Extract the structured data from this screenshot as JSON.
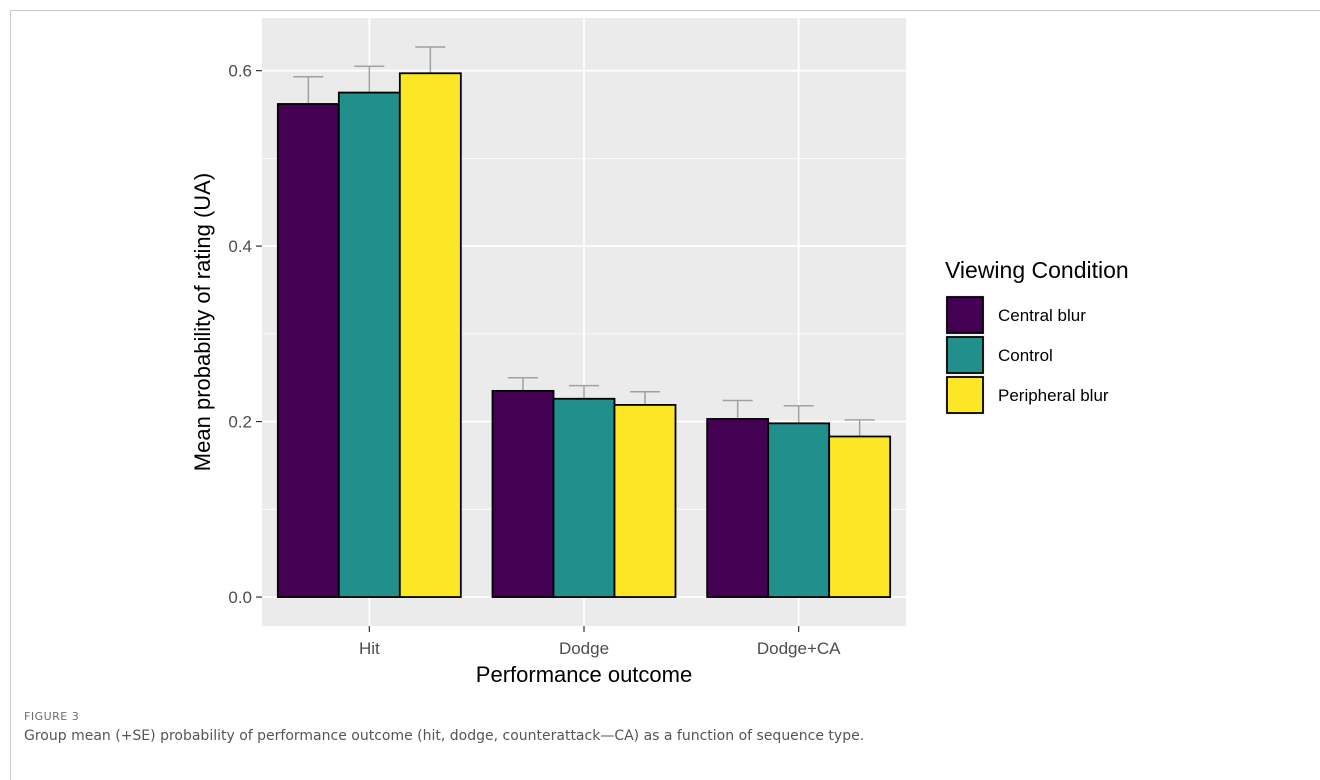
{
  "figure": {
    "label": "FIGURE 3",
    "caption": "Group mean (+SE) probability of performance outcome (hit, dodge, counterattack—CA) as a function of sequence type."
  },
  "chart_data": {
    "type": "bar",
    "xlabel": "Performance outcome",
    "ylabel": "Mean probability of rating (UA)",
    "categories": [
      "Hit",
      "Dodge",
      "Dodge+CA"
    ],
    "ylim": [
      -0.033,
      0.66
    ],
    "yticks": [
      0.0,
      0.2,
      0.4,
      0.6
    ],
    "ytick_labels": [
      "0.0",
      "0.2",
      "0.4",
      "0.6"
    ],
    "grid": true,
    "legend": {
      "title": "Viewing Condition",
      "position": "right"
    },
    "series": [
      {
        "name": "Central blur",
        "color": "#440154",
        "values": [
          0.562,
          0.235,
          0.203
        ],
        "se": [
          0.031,
          0.015,
          0.021
        ]
      },
      {
        "name": "Control",
        "color": "#21908C",
        "values": [
          0.575,
          0.226,
          0.198
        ],
        "se": [
          0.03,
          0.015,
          0.02
        ]
      },
      {
        "name": "Peripheral blur",
        "color": "#FDE725",
        "values": [
          0.597,
          0.219,
          0.183
        ],
        "se": [
          0.03,
          0.015,
          0.019
        ]
      }
    ],
    "panel_color": "#EBEBEB",
    "grid_color": "#FFFFFF"
  }
}
